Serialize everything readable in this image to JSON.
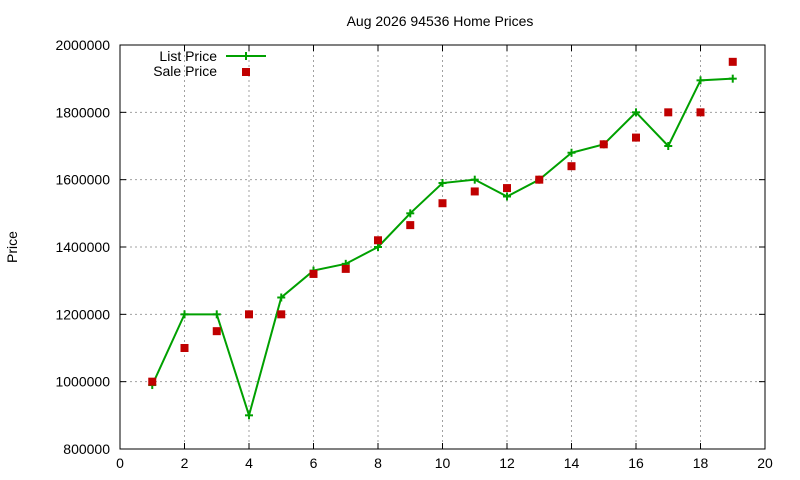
{
  "chart_data": {
    "type": "line",
    "title": "Aug 2026 94536 Home Prices",
    "xlabel": "",
    "ylabel": "Price",
    "xlim": [
      0,
      20
    ],
    "ylim": [
      800000,
      2000000
    ],
    "xticks": [
      0,
      2,
      4,
      6,
      8,
      10,
      12,
      14,
      16,
      18,
      20
    ],
    "yticks": [
      800000,
      1000000,
      1200000,
      1400000,
      1600000,
      1800000,
      2000000
    ],
    "grid": true,
    "legend_position": "top-left",
    "series": [
      {
        "name": "List Price",
        "style": "line-with-plus-markers",
        "color": "#00a000",
        "x": [
          1,
          2,
          3,
          4,
          5,
          6,
          7,
          8,
          9,
          10,
          11,
          12,
          13,
          14,
          15,
          16,
          17,
          18,
          19
        ],
        "y": [
          990000,
          1200000,
          1200000,
          900000,
          1250000,
          1330000,
          1350000,
          1400000,
          1500000,
          1590000,
          1600000,
          1550000,
          1600000,
          1680000,
          1705000,
          1800000,
          1700000,
          1895000,
          1900000
        ]
      },
      {
        "name": "Sale Price",
        "style": "square-markers",
        "color": "#c00000",
        "x": [
          1,
          2,
          3,
          4,
          5,
          6,
          7,
          8,
          9,
          10,
          11,
          12,
          13,
          14,
          15,
          16,
          17,
          18,
          19
        ],
        "y": [
          1000000,
          1100000,
          1150000,
          1200000,
          1200000,
          1320000,
          1335000,
          1420000,
          1465000,
          1530000,
          1565000,
          1575000,
          1600000,
          1640000,
          1705000,
          1725000,
          1800000,
          1800000,
          1950000
        ]
      }
    ]
  }
}
